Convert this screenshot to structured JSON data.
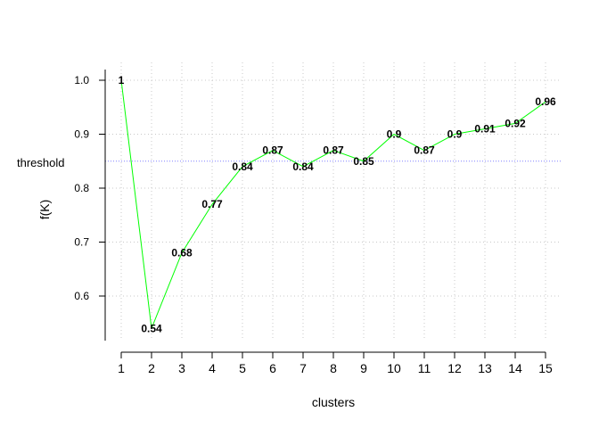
{
  "chart_data": {
    "type": "line",
    "xlabel": "clusters",
    "ylabel": "f(K)",
    "x": [
      1,
      2,
      3,
      4,
      5,
      6,
      7,
      8,
      9,
      10,
      11,
      12,
      13,
      14,
      15
    ],
    "series": [
      {
        "values": [
          1.0,
          0.54,
          0.68,
          0.77,
          0.84,
          0.87,
          0.84,
          0.87,
          0.85,
          0.9,
          0.87,
          0.9,
          0.91,
          0.92,
          0.96
        ],
        "labels": [
          "1",
          "0.54",
          "0.68",
          "0.77",
          "0.84",
          "0.87",
          "0.84",
          "0.87",
          "0.85",
          "0.9",
          "0.87",
          "0.9",
          "0.91",
          "0.92",
          "0.96"
        ],
        "color": "#00ff00"
      }
    ],
    "xlim": [
      0.5,
      15.5
    ],
    "ylim": [
      0.52,
      1.02
    ],
    "xticks": [
      "1",
      "2",
      "3",
      "4",
      "5",
      "6",
      "7",
      "8",
      "9",
      "10",
      "11",
      "12",
      "13",
      "14",
      "15"
    ],
    "yticks": [
      "0.6",
      "0.7",
      "0.8",
      "0.9",
      "1.0"
    ],
    "grid": true,
    "threshold": {
      "value": 0.85,
      "label": "threshold",
      "color": "#8080ff"
    }
  }
}
